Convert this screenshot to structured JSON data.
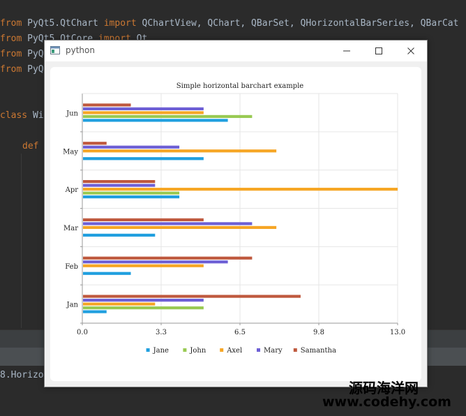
{
  "ide": {
    "lines": [
      {
        "kw1": "from",
        "mod": " PyQt5.QtChart ",
        "kw2": "import",
        "rest": " QChartView, QChart, QBarSet, QHorizontalBarSeries, QBarCat"
      },
      {
        "kw1": "from",
        "mod": " PyQt5.QtCore ",
        "kw2": "import",
        "rest": " Qt"
      },
      {
        "kw1": "from",
        "mod": " PyQ",
        "kw2": "",
        "rest": ""
      },
      {
        "kw1": "from",
        "mod": " PyQ",
        "kw2": "",
        "rest": ""
      },
      {
        "kw1": "class",
        "mod": " Wi",
        "kw2": "",
        "rest": ""
      },
      {
        "kw1": "def",
        "mod": "",
        "kw2": "",
        "rest": ""
      }
    ],
    "bottom_text": "8.Horizo"
  },
  "window": {
    "title": "python",
    "minimize_symbol": "—",
    "close_symbol": "✕"
  },
  "colors": {
    "Jane": "#209fdf",
    "John": "#99ca53",
    "Axel": "#f6a625",
    "Mary": "#6d5fd5",
    "Samantha": "#bf593e"
  },
  "chart_data": {
    "type": "bar",
    "orientation": "horizontal",
    "title": "Simple horizontal barchart example",
    "categories": [
      "Jan",
      "Feb",
      "Mar",
      "Apr",
      "May",
      "Jun"
    ],
    "series": [
      {
        "name": "Jane",
        "values": [
          1,
          2,
          3,
          4,
          5,
          6
        ]
      },
      {
        "name": "John",
        "values": [
          5,
          0,
          0,
          4,
          0,
          7
        ]
      },
      {
        "name": "Axel",
        "values": [
          3,
          5,
          8,
          13,
          8,
          5
        ]
      },
      {
        "name": "Mary",
        "values": [
          5,
          6,
          7,
          3,
          4,
          5
        ]
      },
      {
        "name": "Samantha",
        "values": [
          9,
          7,
          5,
          3,
          1,
          2
        ]
      }
    ],
    "xlim": [
      0,
      13
    ],
    "x_ticks": [
      "0.0",
      "3.3",
      "6.5",
      "9.8",
      "13.0"
    ],
    "grid": true,
    "legend_position": "bottom"
  },
  "watermark": {
    "line1": "源码海洋网",
    "line2": "www.codehy.com"
  }
}
